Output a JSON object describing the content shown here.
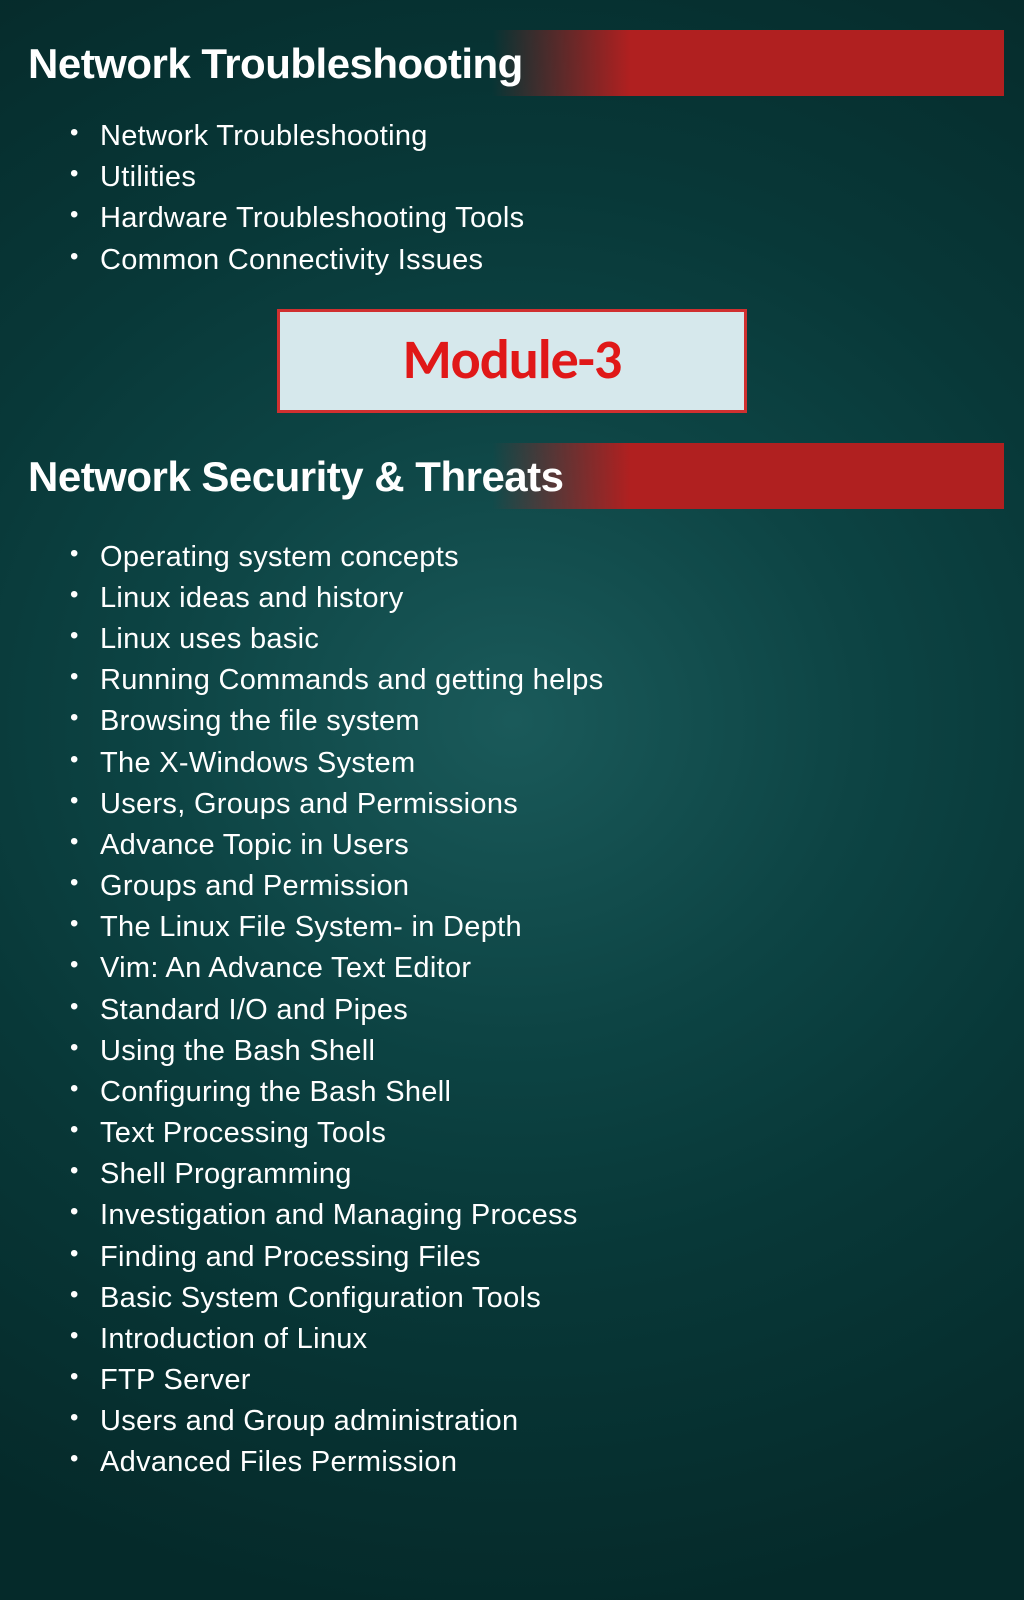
{
  "colors": {
    "background_center": "#1a5a5a",
    "background_edge": "#052a2a",
    "header_gradient_end": "#b02020",
    "text": "#ffffff",
    "module_border": "#d03030",
    "module_bg": "#d6e8ec",
    "module_text": "#e01818"
  },
  "typography": {
    "body_font": "Century Gothic",
    "module_font": "Calibri",
    "header_fontsize": 42,
    "bullet_fontsize": 29,
    "module_fontsize": 56
  },
  "section1": {
    "title": "Network Troubleshooting",
    "items": [
      "Network Troubleshooting",
      "Utilities",
      "Hardware Troubleshooting Tools",
      "Common Connectivity Issues"
    ]
  },
  "module": {
    "label": "Module-3"
  },
  "section2": {
    "title": "Network Security & Threats",
    "items": [
      "Operating system concepts",
      "Linux ideas and history",
      "Linux uses basic",
      "Running Commands and getting helps",
      "Browsing the file system",
      "The X-Windows System",
      "Users, Groups and Permissions",
      "Advance Topic in Users",
      "Groups and Permission",
      "The Linux File System- in Depth",
      "Vim: An Advance Text Editor",
      "Standard I/O and Pipes",
      "Using the Bash Shell",
      "Configuring the Bash Shell",
      "Text Processing Tools",
      "Shell Programming",
      "Investigation and Managing Process",
      "Finding and Processing Files",
      "Basic System Configuration Tools",
      "Introduction of Linux",
      "FTP Server",
      "Users and Group administration",
      "Advanced Files Permission"
    ]
  }
}
